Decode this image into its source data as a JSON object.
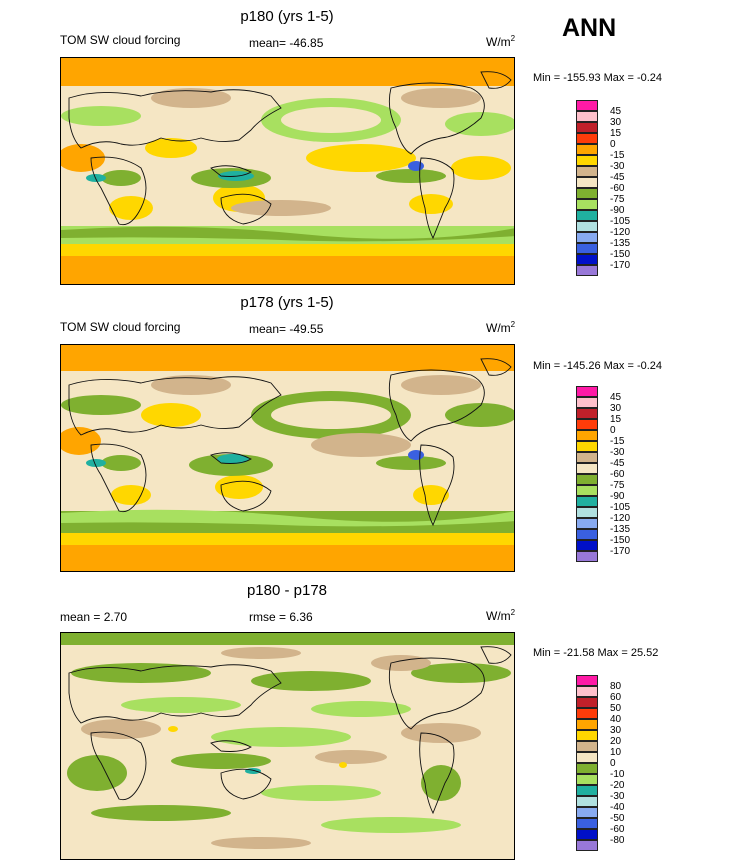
{
  "season": "ANN",
  "panels": [
    {
      "title": "p180 (yrs 1-5)",
      "left_label": "TOM SW cloud forcing",
      "center_label": "mean= -46.85",
      "units": "W/m",
      "units_exp": "2",
      "minmax": "Min = -155.93 Max =  -0.24",
      "colorbar": {
        "labels": [
          "45",
          "30",
          "15",
          "0",
          "-15",
          "-30",
          "-45",
          "-60",
          "-75",
          "-90",
          "-105",
          "-120",
          "-135",
          "-150",
          "-170"
        ],
        "colors": [
          "#ff1aa6",
          "#ffc0cb",
          "#c0202a",
          "#ff3c0a",
          "#ffa500",
          "#ffd700",
          "#d2b48c",
          "#f5e6c4",
          "#7fb030",
          "#a8e060",
          "#20b0a0",
          "#b0e0e0",
          "#88aaf0",
          "#3a60e0",
          "#0010c8",
          "#9878d8"
        ]
      }
    },
    {
      "title": "p178 (yrs 1-5)",
      "left_label": "TOM SW cloud forcing",
      "center_label": "mean= -49.55",
      "units": "W/m",
      "units_exp": "2",
      "minmax": "Min = -145.26 Max =  -0.24",
      "colorbar": {
        "labels": [
          "45",
          "30",
          "15",
          "0",
          "-15",
          "-30",
          "-45",
          "-60",
          "-75",
          "-90",
          "-105",
          "-120",
          "-135",
          "-150",
          "-170"
        ],
        "colors": [
          "#ff1aa6",
          "#ffc0cb",
          "#c0202a",
          "#ff3c0a",
          "#ffa500",
          "#ffd700",
          "#d2b48c",
          "#f5e6c4",
          "#7fb030",
          "#a8e060",
          "#20b0a0",
          "#b0e0e0",
          "#88aaf0",
          "#3a60e0",
          "#0010c8",
          "#9878d8"
        ]
      }
    },
    {
      "title": "p180 - p178",
      "left_label": "mean =   2.70",
      "center_label": "rmse =   6.36",
      "units": "W/m",
      "units_exp": "2",
      "minmax": "Min = -21.58 Max =  25.52",
      "colorbar": {
        "labels": [
          "80",
          "60",
          "50",
          "40",
          "30",
          "20",
          "10",
          "0",
          "-10",
          "-20",
          "-30",
          "-40",
          "-50",
          "-60",
          "-80"
        ],
        "colors": [
          "#ff1aa6",
          "#ffc0cb",
          "#c0202a",
          "#ff3c0a",
          "#ffa500",
          "#ffd700",
          "#d2b48c",
          "#f5e6c4",
          "#7fb030",
          "#a8e060",
          "#20b0a0",
          "#b0e0e0",
          "#88aaf0",
          "#3a60e0",
          "#0010c8",
          "#9878d8"
        ]
      }
    }
  ]
}
